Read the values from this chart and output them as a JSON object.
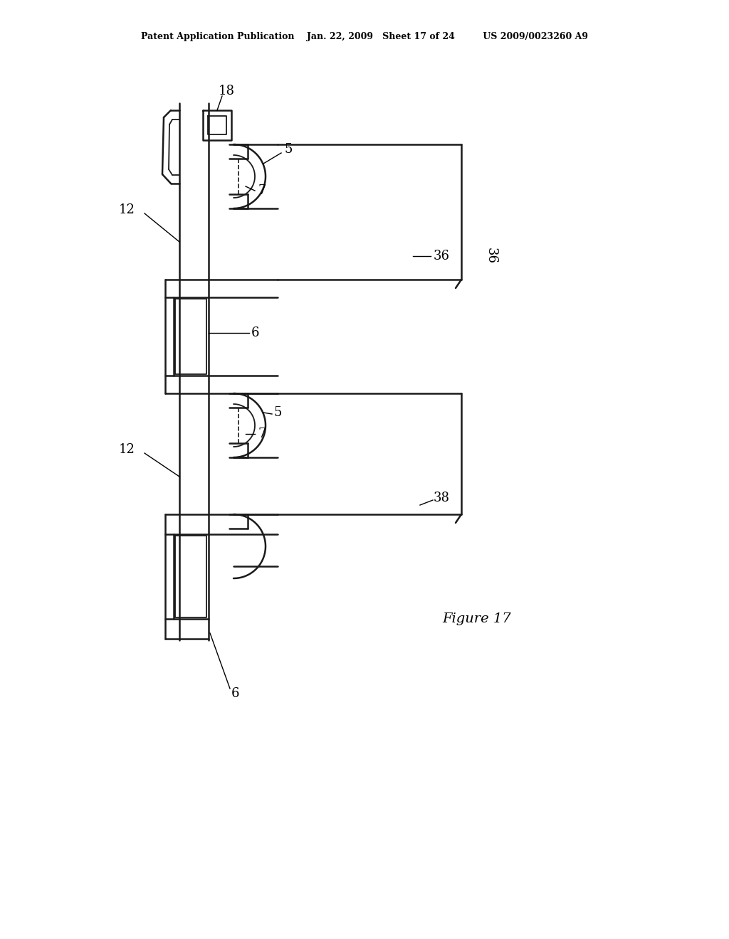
{
  "background_color": "#ffffff",
  "line_color": "#1a1a1a",
  "header": "Patent Application Publication    Jan. 22, 2009   Sheet 17 of 24         US 2009/0023260 A9",
  "figure_label": "Figure 17",
  "lw_main": 1.8,
  "lw_thin": 1.3,
  "lw_dashed": 1.2
}
